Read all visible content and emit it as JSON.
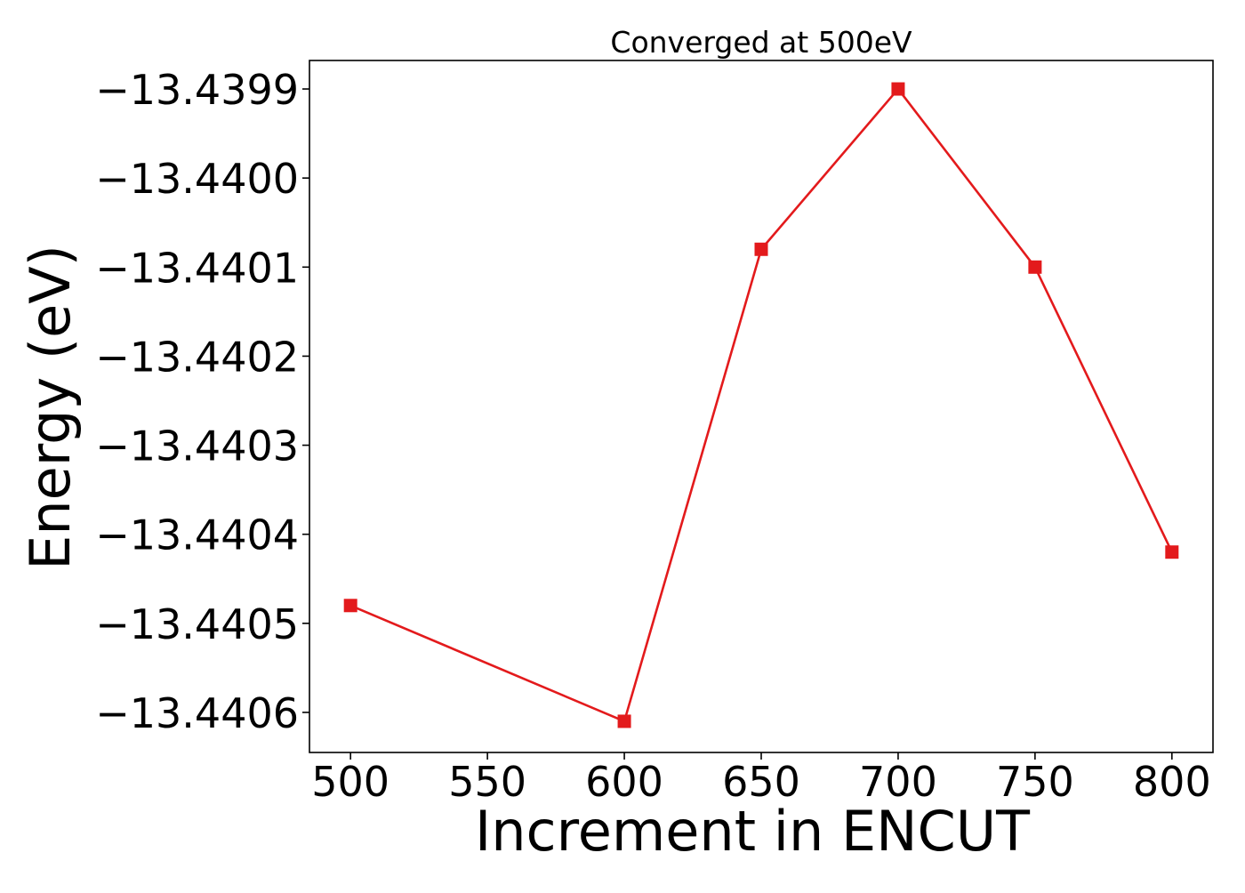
{
  "chart_data": {
    "type": "line",
    "title": "Converged at 500eV",
    "xlabel": "Increment in ENCUT",
    "ylabel": "Energy (eV)",
    "x": [
      500,
      600,
      650,
      700,
      750,
      800
    ],
    "series": [
      {
        "values": [
          -13.44048,
          -13.44061,
          -13.44008,
          -13.4399,
          -13.4401,
          -13.44042
        ],
        "color": "#e31a1c",
        "marker": "square"
      }
    ],
    "xlim": [
      485,
      815
    ],
    "ylim": [
      -13.440645,
      -13.439868
    ],
    "xticks": [
      500,
      550,
      600,
      650,
      700,
      750,
      800
    ],
    "xtick_labels": [
      "500",
      "550",
      "600",
      "650",
      "700",
      "750",
      "800"
    ],
    "yticks": [
      -13.4399,
      -13.44,
      -13.4401,
      -13.4402,
      -13.4403,
      -13.4404,
      -13.4405,
      -13.4406
    ],
    "ytick_labels": [
      "−13.4399",
      "−13.4400",
      "−13.4401",
      "−13.4402",
      "−13.4403",
      "−13.4404",
      "−13.4405",
      "−13.4406"
    ],
    "grid": false,
    "legend": false
  }
}
